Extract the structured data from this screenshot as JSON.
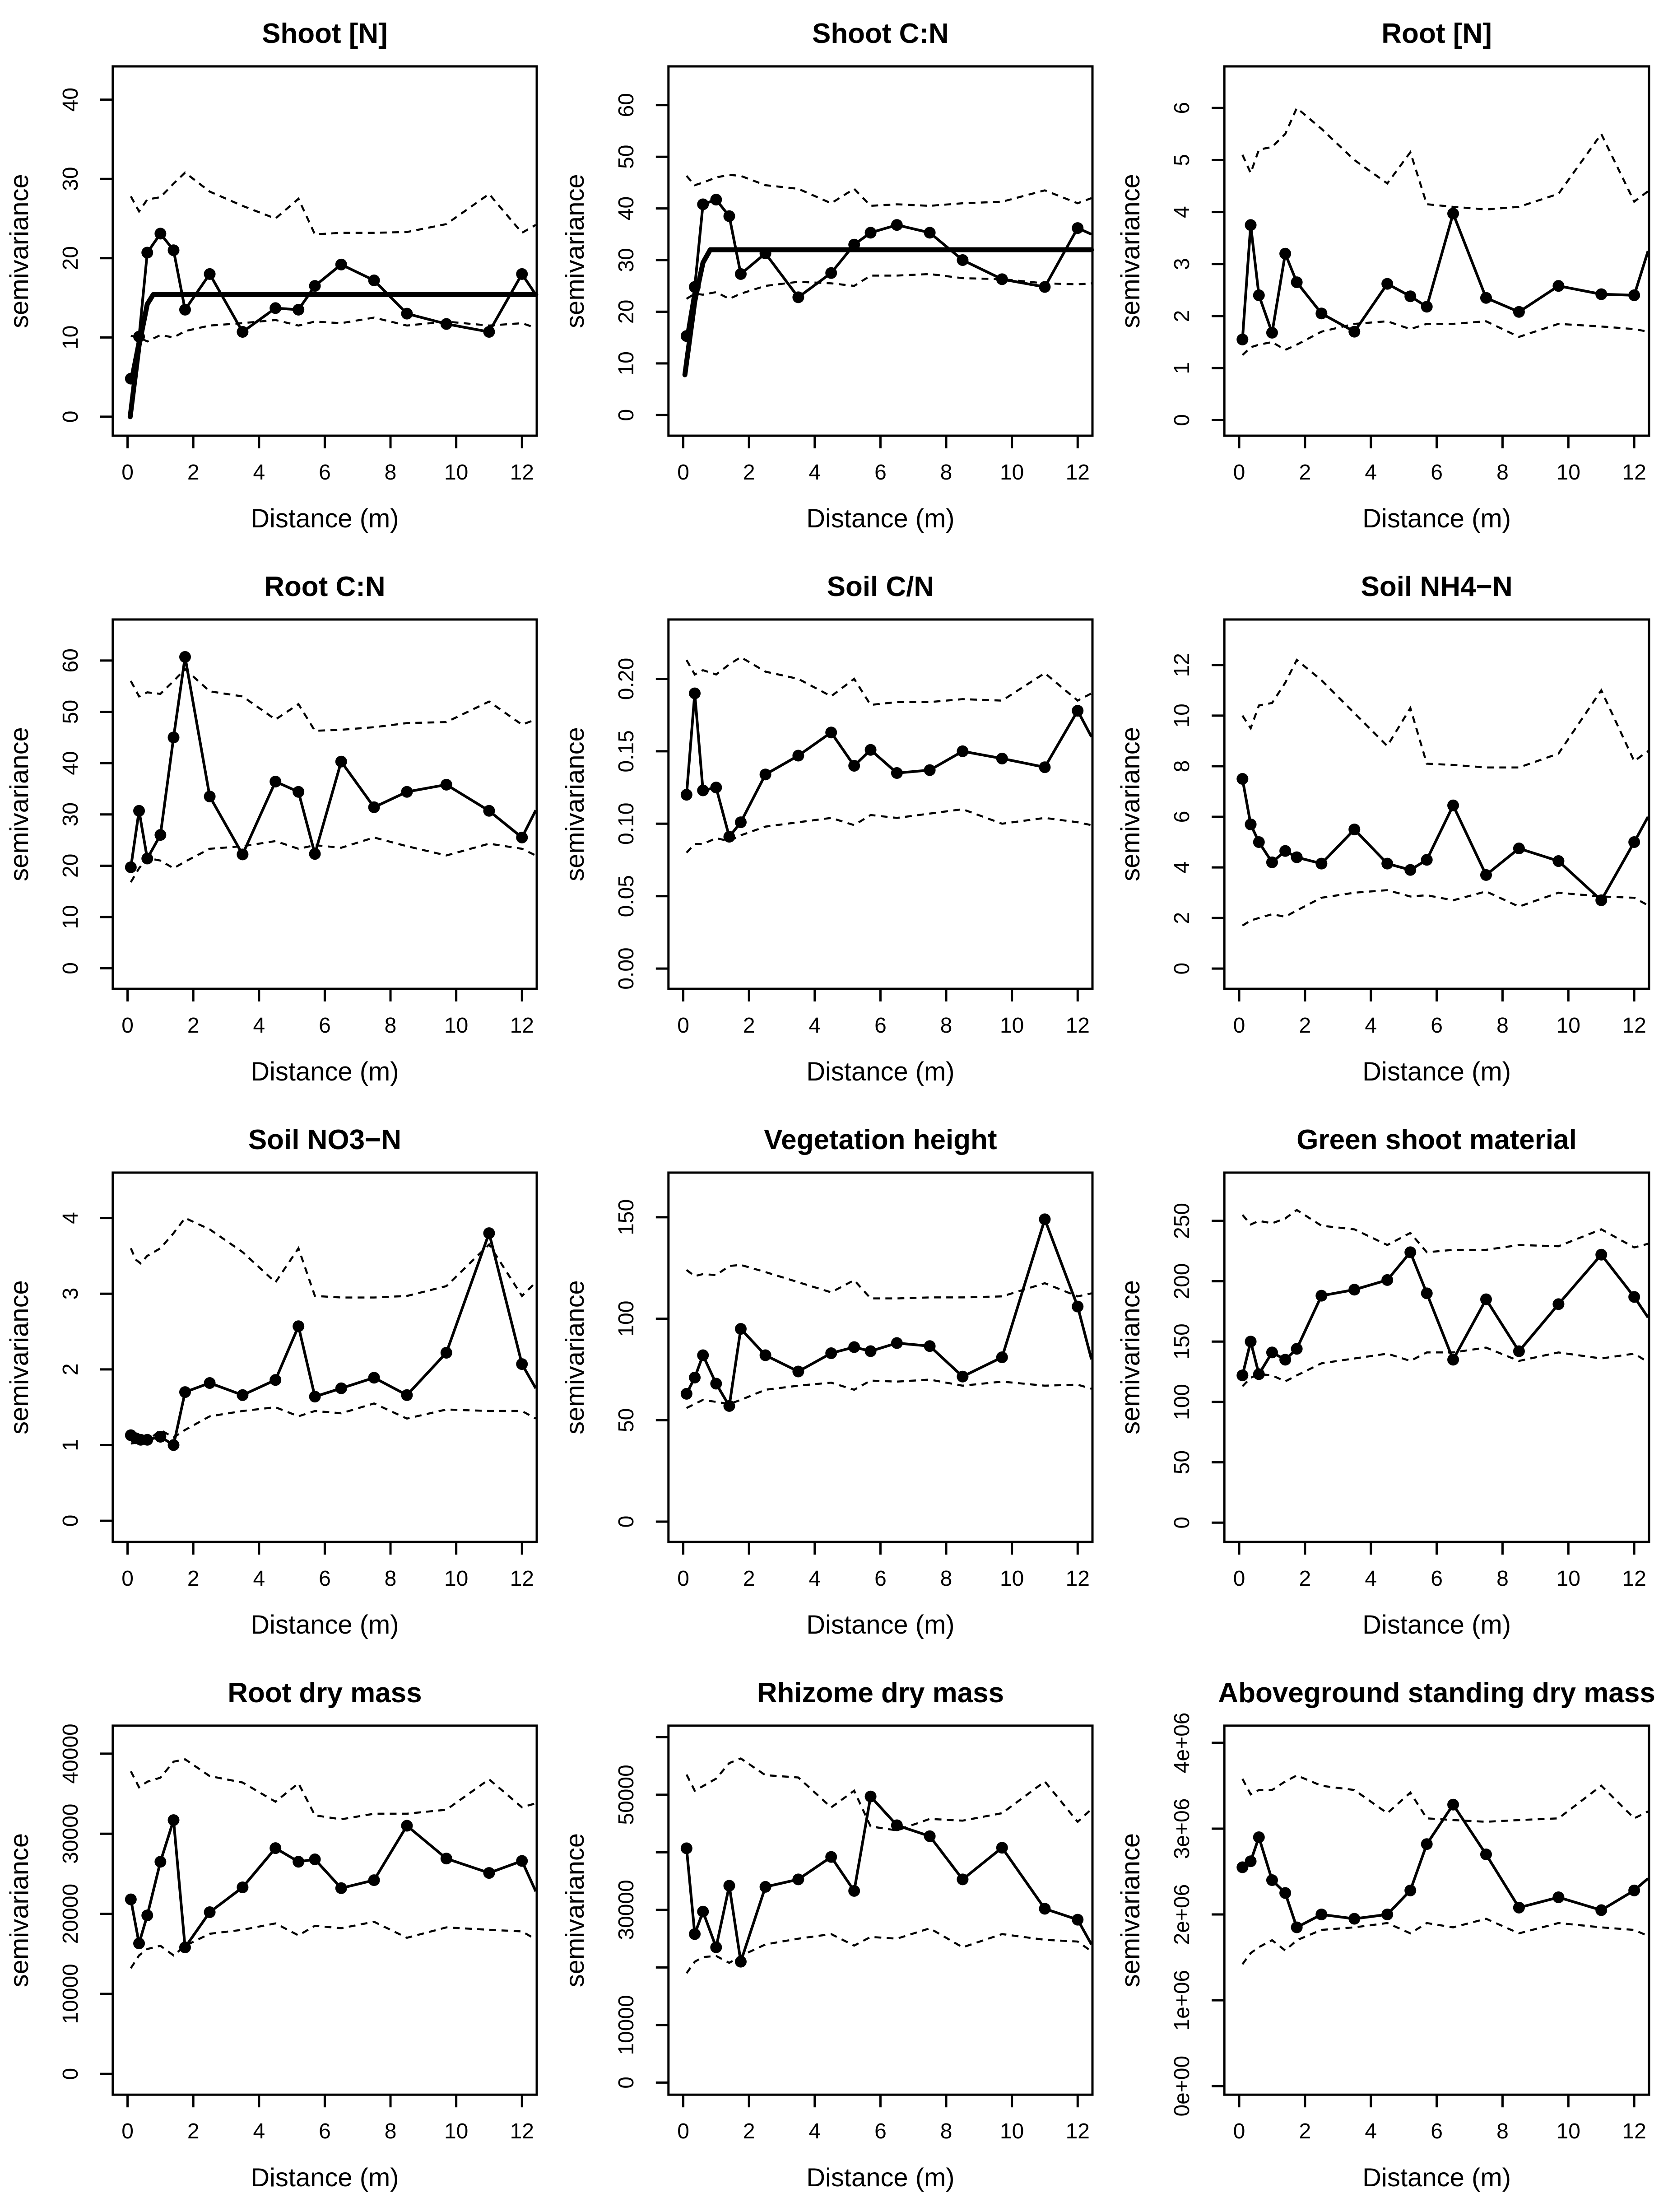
{
  "page": {
    "background": "#ffffff",
    "foreground": "#000000"
  },
  "shared": {
    "xlabel": "Distance (m)",
    "ylabel": "semivariance",
    "x_ticks": [
      0,
      2,
      4,
      6,
      8,
      10,
      12
    ],
    "xlim": [
      -0.45,
      12.45
    ],
    "end_x": 12.42,
    "legend": "none",
    "grid": "off",
    "marker": "filled-circle",
    "envelope_style": "dashed",
    "colors": {
      "fg": "#000000",
      "bg": "#ffffff"
    }
  },
  "chart_data": [
    {
      "id": "shoot-n",
      "type": "line",
      "title": "Shoot [N]",
      "ylim": [
        -2.4,
        44.2
      ],
      "y_ticks": [
        0,
        10,
        20,
        30,
        40
      ],
      "y_tick_labels": [
        "0",
        "10",
        "20",
        "30",
        "40"
      ],
      "x": [
        0.1,
        0.35,
        0.6,
        1,
        1.4,
        1.75,
        2.5,
        3.5,
        4.5,
        5.2,
        5.7,
        6.5,
        7.5,
        8.5,
        9.7,
        11,
        12
      ],
      "y": [
        4.8,
        10.1,
        20.7,
        23.1,
        21.0,
        13.5,
        18.0,
        10.7,
        13.7,
        13.5,
        16.5,
        19.2,
        17.2,
        13.0,
        11.7,
        10.7,
        18.0
      ],
      "end_y": 15.4,
      "upper": [
        27.8,
        25.9,
        27.4,
        27.7,
        29.4,
        30.8,
        28.4,
        26.6,
        25.0,
        27.5,
        23.0,
        23.2,
        23.2,
        23.3,
        24.3,
        28.1,
        23.2
      ],
      "upper_end": 24.2,
      "lower": [
        10.2,
        10.0,
        9.5,
        10.3,
        10.0,
        10.8,
        11.5,
        11.8,
        12.2,
        11.5,
        12.0,
        11.8,
        12.5,
        11.5,
        12.0,
        11.5,
        11.8
      ],
      "lower_end": 11.2,
      "model": [
        [
          0.08,
          0
        ],
        [
          0.35,
          9.0
        ],
        [
          0.6,
          14.2
        ],
        [
          0.78,
          15.4
        ],
        [
          12.42,
          15.4
        ]
      ]
    },
    {
      "id": "shoot-cn",
      "type": "line",
      "title": "Shoot C:N",
      "ylim": [
        -4,
        67.5
      ],
      "y_ticks": [
        0,
        10,
        20,
        30,
        40,
        50,
        60
      ],
      "y_tick_labels": [
        "0",
        "10",
        "20",
        "30",
        "40",
        "50",
        "60"
      ],
      "x": [
        0.1,
        0.35,
        0.6,
        1,
        1.4,
        1.75,
        2.5,
        3.5,
        4.5,
        5.2,
        5.7,
        6.5,
        7.5,
        8.5,
        9.7,
        11,
        12
      ],
      "y": [
        15.3,
        24.8,
        40.8,
        41.7,
        38.5,
        27.3,
        31.3,
        22.8,
        27.5,
        33.0,
        35.3,
        36.8,
        35.3,
        30.0,
        26.3,
        24.8,
        36.2
      ],
      "end_y": 35.0,
      "upper": [
        46.3,
        44.5,
        45.0,
        46.0,
        46.5,
        46.3,
        44.5,
        43.8,
        41.0,
        43.8,
        40.5,
        40.8,
        40.5,
        41.0,
        41.3,
        43.5,
        41.0
      ],
      "upper_end": 42.0,
      "lower": [
        22.5,
        23.5,
        23.3,
        23.8,
        22.5,
        23.5,
        25.0,
        25.8,
        25.5,
        25.0,
        27.0,
        27.0,
        27.3,
        26.5,
        26.3,
        25.5,
        25.3
      ],
      "lower_end": 25.5,
      "model": [
        [
          0.05,
          7.8
        ],
        [
          0.35,
          22.0
        ],
        [
          0.6,
          29.5
        ],
        [
          0.82,
          32.0
        ],
        [
          12.42,
          32.0
        ]
      ]
    },
    {
      "id": "root-n",
      "type": "line",
      "title": "Root [N]",
      "ylim": [
        -0.3,
        6.8
      ],
      "y_ticks": [
        0,
        1,
        2,
        3,
        4,
        5,
        6
      ],
      "y_tick_labels": [
        "0",
        "1",
        "2",
        "3",
        "4",
        "5",
        "6"
      ],
      "x": [
        0.1,
        0.35,
        0.6,
        1,
        1.4,
        1.75,
        2.5,
        3.5,
        4.5,
        5.2,
        5.7,
        6.5,
        7.5,
        8.5,
        9.7,
        11,
        12
      ],
      "y": [
        1.55,
        3.75,
        2.4,
        1.68,
        3.2,
        2.65,
        2.05,
        1.7,
        2.62,
        2.38,
        2.18,
        3.97,
        2.35,
        2.08,
        2.58,
        2.42,
        2.4
      ],
      "end_y": 3.25,
      "upper": [
        5.1,
        4.75,
        5.2,
        5.25,
        5.5,
        6.0,
        5.6,
        5.0,
        4.55,
        5.15,
        4.15,
        4.1,
        4.05,
        4.1,
        4.35,
        5.5,
        4.2
      ],
      "upper_end": 4.4,
      "lower": [
        1.25,
        1.4,
        1.45,
        1.5,
        1.35,
        1.45,
        1.7,
        1.85,
        1.9,
        1.75,
        1.85,
        1.85,
        1.9,
        1.6,
        1.85,
        1.8,
        1.75
      ],
      "lower_end": 1.7,
      "model": null
    },
    {
      "id": "root-cn",
      "type": "line",
      "title": "Root C:N",
      "ylim": [
        -4,
        68
      ],
      "y_ticks": [
        0,
        10,
        20,
        30,
        40,
        50,
        60
      ],
      "y_tick_labels": [
        "0",
        "10",
        "20",
        "30",
        "40",
        "50",
        "60"
      ],
      "x": [
        0.1,
        0.35,
        0.6,
        1,
        1.4,
        1.75,
        2.5,
        3.5,
        4.5,
        5.2,
        5.7,
        6.5,
        7.5,
        8.5,
        9.7,
        11,
        12
      ],
      "y": [
        19.7,
        30.7,
        21.4,
        26.0,
        45.0,
        60.7,
        33.5,
        22.2,
        36.4,
        34.4,
        22.3,
        40.3,
        31.4,
        34.4,
        35.8,
        30.7,
        25.5
      ],
      "end_y": 30.8,
      "upper": [
        56.0,
        53.0,
        53.8,
        53.5,
        56.0,
        58.3,
        54.0,
        53.0,
        48.5,
        51.5,
        46.3,
        46.5,
        47.0,
        47.8,
        48.0,
        52.0,
        47.5
      ],
      "upper_end": 48.5,
      "lower": [
        16.8,
        19.5,
        21.5,
        21.0,
        19.5,
        20.8,
        23.3,
        23.8,
        24.8,
        23.3,
        24.0,
        23.5,
        25.5,
        23.8,
        22.0,
        24.3,
        23.3
      ],
      "lower_end": 22.0,
      "model": null
    },
    {
      "id": "soil-cn",
      "type": "line",
      "title": "Soil C/N",
      "ylim": [
        -0.014,
        0.241
      ],
      "y_ticks": [
        0,
        0.05,
        0.1,
        0.15,
        0.2
      ],
      "y_tick_labels": [
        "0.00",
        "0.05",
        "0.10",
        "0.15",
        "0.20"
      ],
      "x": [
        0.1,
        0.35,
        0.6,
        1,
        1.4,
        1.75,
        2.5,
        3.5,
        4.5,
        5.2,
        5.7,
        6.5,
        7.5,
        8.5,
        9.7,
        11,
        12
      ],
      "y": [
        0.12,
        0.19,
        0.123,
        0.125,
        0.091,
        0.101,
        0.134,
        0.147,
        0.163,
        0.14,
        0.151,
        0.135,
        0.137,
        0.15,
        0.145,
        0.139,
        0.178
      ],
      "end_y": 0.16,
      "upper": [
        0.213,
        0.203,
        0.206,
        0.203,
        0.21,
        0.215,
        0.205,
        0.2,
        0.188,
        0.2,
        0.182,
        0.184,
        0.184,
        0.186,
        0.185,
        0.204,
        0.185
      ],
      "upper_end": 0.19,
      "lower": [
        0.08,
        0.086,
        0.086,
        0.09,
        0.088,
        0.092,
        0.098,
        0.101,
        0.104,
        0.099,
        0.106,
        0.104,
        0.107,
        0.11,
        0.1,
        0.104,
        0.101
      ],
      "lower_end": 0.099,
      "model": null
    },
    {
      "id": "soil-nh4n",
      "type": "line",
      "title": "Soil NH4−N",
      "ylim": [
        -0.8,
        13.8
      ],
      "y_ticks": [
        0,
        2,
        4,
        6,
        8,
        10,
        12
      ],
      "y_tick_labels": [
        "0",
        "2",
        "4",
        "6",
        "8",
        "10",
        "12"
      ],
      "x": [
        0.1,
        0.35,
        0.6,
        1,
        1.4,
        1.75,
        2.5,
        3.5,
        4.5,
        5.2,
        5.7,
        6.5,
        7.5,
        8.5,
        9.7,
        11,
        12
      ],
      "y": [
        7.5,
        5.7,
        5.0,
        4.2,
        4.65,
        4.4,
        4.15,
        5.5,
        4.15,
        3.9,
        4.3,
        6.45,
        3.7,
        4.75,
        4.25,
        2.7,
        5.0
      ],
      "end_y": 6.0,
      "upper": [
        10.0,
        9.5,
        10.4,
        10.5,
        11.3,
        12.2,
        11.4,
        10.1,
        8.8,
        10.3,
        8.1,
        8.05,
        7.95,
        7.95,
        8.5,
        11.0,
        8.2
      ],
      "upper_end": 8.6,
      "lower": [
        1.7,
        1.9,
        2.0,
        2.15,
        2.05,
        2.3,
        2.8,
        3.0,
        3.1,
        2.85,
        2.9,
        2.7,
        3.05,
        2.45,
        3.0,
        2.85,
        2.8
      ],
      "lower_end": 2.5,
      "model": null
    },
    {
      "id": "soil-no3n",
      "type": "line",
      "title": "Soil NO3−N",
      "ylim": [
        -0.28,
        4.6
      ],
      "y_ticks": [
        0,
        1,
        2,
        3,
        4
      ],
      "y_tick_labels": [
        "0",
        "1",
        "2",
        "3",
        "4"
      ],
      "x": [
        0.1,
        0.25,
        0.4,
        0.6,
        1,
        1.4,
        1.75,
        2.5,
        3.5,
        4.5,
        5.2,
        5.7,
        6.5,
        7.5,
        8.5,
        9.7,
        11,
        12
      ],
      "y": [
        1.13,
        1.09,
        1.07,
        1.07,
        1.11,
        1.0,
        1.7,
        1.82,
        1.66,
        1.86,
        2.57,
        1.64,
        1.75,
        1.89,
        1.66,
        2.22,
        3.8,
        2.07
      ],
      "end_y": 1.75,
      "upper": [
        3.6,
        3.45,
        3.4,
        3.5,
        3.6,
        3.8,
        4.0,
        3.85,
        3.55,
        3.15,
        3.6,
        2.97,
        2.95,
        2.95,
        2.97,
        3.1,
        3.65,
        2.97
      ],
      "upper_end": 3.15,
      "lower": [
        1.02,
        1.03,
        1.04,
        1.05,
        1.2,
        1.1,
        1.2,
        1.38,
        1.45,
        1.5,
        1.38,
        1.45,
        1.42,
        1.55,
        1.35,
        1.47,
        1.45,
        1.45
      ],
      "lower_end": 1.35,
      "model": null
    },
    {
      "id": "vegetation-height",
      "type": "line",
      "title": "Vegetation height",
      "ylim": [
        -10,
        172
      ],
      "y_ticks": [
        0,
        50,
        100,
        150
      ],
      "y_tick_labels": [
        "0",
        "50",
        "100",
        "150"
      ],
      "x": [
        0.1,
        0.35,
        0.6,
        1,
        1.4,
        1.75,
        2.5,
        3.5,
        4.5,
        5.2,
        5.7,
        6.5,
        7.5,
        8.5,
        9.7,
        11,
        12
      ],
      "y": [
        63,
        71,
        82,
        68,
        57,
        95,
        82,
        74,
        83,
        86,
        84,
        88,
        86.5,
        71.5,
        81,
        149,
        106
      ],
      "end_y": 80,
      "upper": [
        124,
        121,
        122,
        121.5,
        126,
        126.5,
        123,
        118,
        113,
        119,
        110,
        110,
        110.5,
        110.5,
        111,
        117.5,
        111
      ],
      "upper_end": 112.5,
      "lower": [
        56,
        58,
        60,
        59,
        58,
        60,
        65,
        67,
        68.5,
        65,
        69.5,
        69,
        70,
        67,
        69,
        67,
        67.5
      ],
      "lower_end": 65.5,
      "model": null
    },
    {
      "id": "green-shoot-material",
      "type": "line",
      "title": "Green shoot material",
      "ylim": [
        -16,
        290
      ],
      "y_ticks": [
        0,
        50,
        100,
        150,
        200,
        250
      ],
      "y_tick_labels": [
        "0",
        "50",
        "100",
        "150",
        "200",
        "250"
      ],
      "x": [
        0.1,
        0.35,
        0.6,
        1,
        1.4,
        1.75,
        2.5,
        3.5,
        4.5,
        5.2,
        5.7,
        6.5,
        7.5,
        8.5,
        9.7,
        11,
        12
      ],
      "y": [
        122,
        150,
        123,
        141,
        135,
        144,
        188,
        193,
        201,
        224,
        190,
        135,
        185,
        142,
        181,
        222,
        187
      ],
      "end_y": 170,
      "upper": [
        255,
        247,
        250,
        248,
        252,
        259,
        246,
        243,
        230,
        240,
        224,
        226,
        226,
        230,
        229,
        243,
        228
      ],
      "upper_end": 231,
      "lower": [
        113,
        120,
        123,
        122,
        117,
        122,
        132,
        136,
        140,
        134,
        141,
        141,
        145,
        134,
        141,
        136,
        140
      ],
      "lower_end": 133,
      "model": null
    },
    {
      "id": "root-dry-mass",
      "type": "line",
      "title": "Root dry mass",
      "ylim": [
        -2600,
        43500
      ],
      "y_ticks": [
        0,
        10000,
        20000,
        30000,
        40000
      ],
      "y_tick_labels": [
        "0",
        "10000",
        "20000",
        "30000",
        "40000"
      ],
      "x": [
        0.1,
        0.35,
        0.6,
        1,
        1.4,
        1.75,
        2.5,
        3.5,
        4.5,
        5.2,
        5.7,
        6.5,
        7.5,
        8.5,
        9.7,
        11,
        12
      ],
      "y": [
        21800,
        16300,
        19800,
        26500,
        31700,
        15800,
        20200,
        23300,
        28200,
        26500,
        26800,
        23200,
        24200,
        31000,
        26900,
        25100,
        26600
      ],
      "end_y": 22800,
      "upper": [
        37800,
        35800,
        36500,
        37000,
        39000,
        39300,
        37200,
        36400,
        34000,
        36300,
        32300,
        31800,
        32500,
        32500,
        33000,
        36800,
        33300
      ],
      "upper_end": 33800,
      "lower": [
        13200,
        14800,
        15600,
        16000,
        14800,
        16000,
        17500,
        18000,
        18800,
        17300,
        18500,
        18200,
        19000,
        17000,
        18300,
        18000,
        17800
      ],
      "lower_end": 16800,
      "model": null
    },
    {
      "id": "rhizome-dry-mass",
      "type": "line",
      "title": "Rhizome dry mass",
      "ylim": [
        -2100,
        62000
      ],
      "y_ticks": [
        0,
        10000,
        20000,
        30000,
        40000,
        50000,
        60000
      ],
      "y_tick_labels": [
        "0",
        "10000",
        null,
        "30000",
        null,
        "50000",
        null
      ],
      "x": [
        0.1,
        0.35,
        0.6,
        1,
        1.4,
        1.75,
        2.5,
        3.5,
        4.5,
        5.2,
        5.7,
        6.5,
        7.5,
        8.5,
        9.7,
        11,
        12
      ],
      "y": [
        40700,
        25800,
        29700,
        23500,
        34200,
        21000,
        34000,
        35300,
        39200,
        33300,
        49700,
        44700,
        42800,
        35300,
        40800,
        30200,
        28300
      ],
      "end_y": 24000,
      "upper": [
        53500,
        50700,
        51500,
        52800,
        55500,
        56300,
        53400,
        53000,
        47800,
        50700,
        44500,
        43800,
        45800,
        45500,
        46800,
        52300,
        45300
      ],
      "upper_end": 47500,
      "lower": [
        19000,
        21000,
        21800,
        22000,
        20800,
        22000,
        24000,
        25000,
        25800,
        23800,
        25300,
        25000,
        26800,
        23500,
        25800,
        24800,
        24500
      ],
      "lower_end": 22800,
      "model": null
    },
    {
      "id": "aboveground-standing-dry-mass",
      "type": "line",
      "title": "Aboveground standing dry mass",
      "ylim": [
        -100000,
        4200000
      ],
      "y_ticks": [
        0,
        1000000,
        2000000,
        3000000,
        4000000
      ],
      "y_tick_labels": [
        "0e+00",
        "1e+06",
        "2e+06",
        "3e+06",
        "4e+06"
      ],
      "x": [
        0.1,
        0.35,
        0.6,
        1,
        1.4,
        1.75,
        2.5,
        3.5,
        4.5,
        5.2,
        5.7,
        6.5,
        7.5,
        8.5,
        9.7,
        11,
        12
      ],
      "y": [
        2550000,
        2620000,
        2900000,
        2400000,
        2250000,
        1850000,
        2000000,
        1950000,
        2000000,
        2280000,
        2820000,
        3280000,
        2700000,
        2080000,
        2200000,
        2050000,
        2280000
      ],
      "end_y": 2420000,
      "upper": [
        3580000,
        3400000,
        3450000,
        3450000,
        3550000,
        3620000,
        3500000,
        3450000,
        3180000,
        3420000,
        3120000,
        3100000,
        3080000,
        3100000,
        3120000,
        3500000,
        3120000
      ],
      "upper_end": 3200000,
      "lower": [
        1420000,
        1550000,
        1620000,
        1700000,
        1580000,
        1700000,
        1820000,
        1850000,
        1900000,
        1780000,
        1900000,
        1850000,
        1950000,
        1780000,
        1900000,
        1850000,
        1820000
      ],
      "lower_end": 1750000,
      "model": null
    }
  ]
}
